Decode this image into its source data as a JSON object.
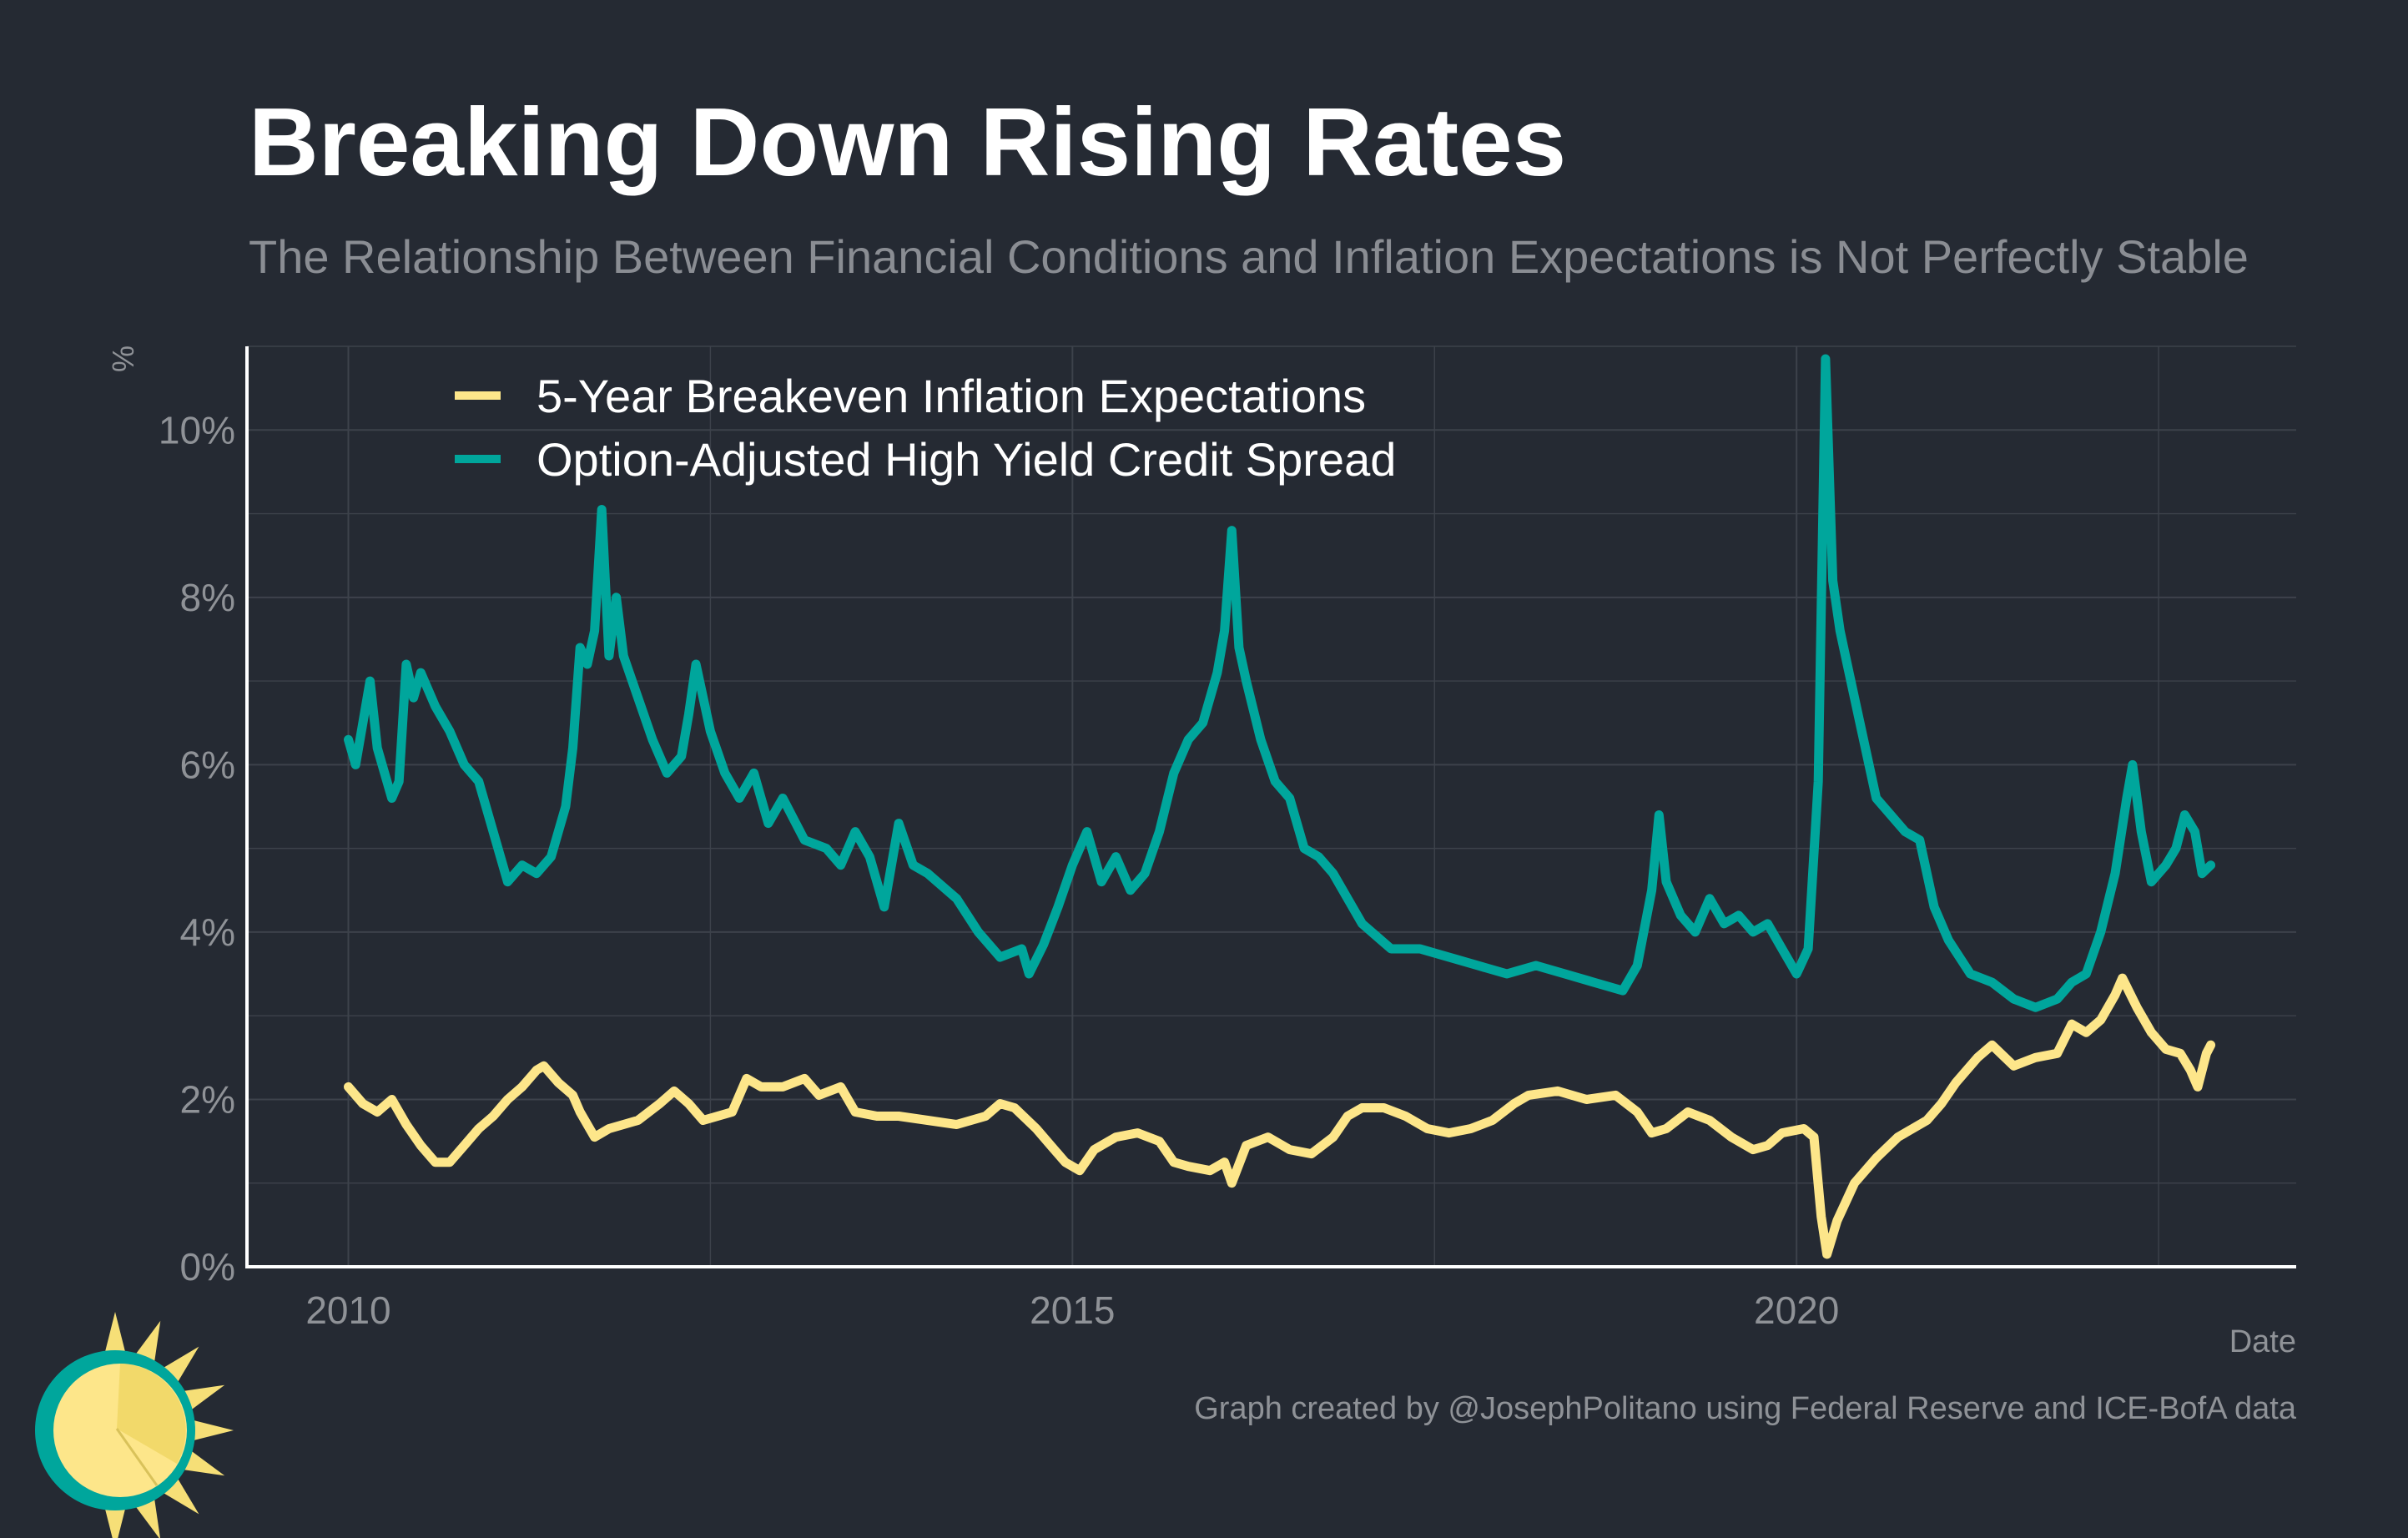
{
  "header": {
    "title": "Breaking Down Rising Rates",
    "subtitle": "The Relationship Between Financial Conditions and Inflation Expectations is Not Perfectly Stable"
  },
  "footer": {
    "credit": "Graph created by @JosephPolitano using Federal Reserve and ICE-BofA data"
  },
  "colors": {
    "background": "#252a33",
    "grid": "#3d424b",
    "axis": "#ffffff",
    "breakeven": "#fde68a",
    "spread": "#00a69c",
    "logo_sun": "#f6df77",
    "logo_ring": "#00a69c"
  },
  "logo": {
    "icon": "sun-logo-icon"
  },
  "chart_data": {
    "type": "line",
    "xlabel": "Date",
    "ylabel": "%",
    "x_ticks": [
      "2010",
      "2015",
      "2020"
    ],
    "y_ticks": [
      "0%",
      "2%",
      "4%",
      "6%",
      "8%",
      "10%"
    ],
    "ylim": [
      0,
      11
    ],
    "xlim": [
      2009.3,
      2023.45
    ],
    "grid": true,
    "legend_position": "top-left",
    "series": [
      {
        "name": "5-Year Breakeven Inflation Expectations",
        "color": "#fde68a",
        "points": [
          [
            2010.0,
            2.15
          ],
          [
            2010.1,
            1.95
          ],
          [
            2010.2,
            1.85
          ],
          [
            2010.3,
            2.0
          ],
          [
            2010.4,
            1.7
          ],
          [
            2010.5,
            1.45
          ],
          [
            2010.6,
            1.25
          ],
          [
            2010.7,
            1.25
          ],
          [
            2010.8,
            1.45
          ],
          [
            2010.9,
            1.65
          ],
          [
            2011.0,
            1.8
          ],
          [
            2011.1,
            2.0
          ],
          [
            2011.2,
            2.15
          ],
          [
            2011.3,
            2.35
          ],
          [
            2011.35,
            2.4
          ],
          [
            2011.45,
            2.2
          ],
          [
            2011.55,
            2.05
          ],
          [
            2011.6,
            1.85
          ],
          [
            2011.7,
            1.55
          ],
          [
            2011.8,
            1.65
          ],
          [
            2011.9,
            1.7
          ],
          [
            2012.0,
            1.75
          ],
          [
            2012.15,
            1.95
          ],
          [
            2012.25,
            2.1
          ],
          [
            2012.35,
            1.95
          ],
          [
            2012.45,
            1.75
          ],
          [
            2012.55,
            1.8
          ],
          [
            2012.65,
            1.85
          ],
          [
            2012.75,
            2.25
          ],
          [
            2012.85,
            2.15
          ],
          [
            2013.0,
            2.15
          ],
          [
            2013.15,
            2.25
          ],
          [
            2013.25,
            2.05
          ],
          [
            2013.4,
            2.15
          ],
          [
            2013.5,
            1.85
          ],
          [
            2013.65,
            1.8
          ],
          [
            2013.8,
            1.8
          ],
          [
            2014.0,
            1.75
          ],
          [
            2014.2,
            1.7
          ],
          [
            2014.4,
            1.8
          ],
          [
            2014.5,
            1.95
          ],
          [
            2014.6,
            1.9
          ],
          [
            2014.75,
            1.65
          ],
          [
            2014.85,
            1.45
          ],
          [
            2014.95,
            1.25
          ],
          [
            2015.05,
            1.15
          ],
          [
            2015.15,
            1.4
          ],
          [
            2015.3,
            1.55
          ],
          [
            2015.45,
            1.6
          ],
          [
            2015.6,
            1.5
          ],
          [
            2015.7,
            1.25
          ],
          [
            2015.8,
            1.2
          ],
          [
            2015.95,
            1.15
          ],
          [
            2016.05,
            1.25
          ],
          [
            2016.1,
            1.0
          ],
          [
            2016.2,
            1.45
          ],
          [
            2016.35,
            1.55
          ],
          [
            2016.5,
            1.4
          ],
          [
            2016.65,
            1.35
          ],
          [
            2016.8,
            1.55
          ],
          [
            2016.9,
            1.8
          ],
          [
            2017.0,
            1.9
          ],
          [
            2017.15,
            1.9
          ],
          [
            2017.3,
            1.8
          ],
          [
            2017.45,
            1.65
          ],
          [
            2017.6,
            1.6
          ],
          [
            2017.75,
            1.65
          ],
          [
            2017.9,
            1.75
          ],
          [
            2018.05,
            1.95
          ],
          [
            2018.15,
            2.05
          ],
          [
            2018.35,
            2.1
          ],
          [
            2018.55,
            2.0
          ],
          [
            2018.75,
            2.05
          ],
          [
            2018.9,
            1.85
          ],
          [
            2019.0,
            1.6
          ],
          [
            2019.1,
            1.65
          ],
          [
            2019.25,
            1.85
          ],
          [
            2019.4,
            1.75
          ],
          [
            2019.55,
            1.55
          ],
          [
            2019.7,
            1.4
          ],
          [
            2019.8,
            1.45
          ],
          [
            2019.9,
            1.6
          ],
          [
            2020.05,
            1.65
          ],
          [
            2020.12,
            1.55
          ],
          [
            2020.17,
            0.6
          ],
          [
            2020.21,
            0.15
          ],
          [
            2020.28,
            0.55
          ],
          [
            2020.4,
            1.0
          ],
          [
            2020.55,
            1.3
          ],
          [
            2020.7,
            1.55
          ],
          [
            2020.9,
            1.75
          ],
          [
            2021.0,
            1.95
          ],
          [
            2021.1,
            2.2
          ],
          [
            2021.25,
            2.5
          ],
          [
            2021.35,
            2.65
          ],
          [
            2021.5,
            2.4
          ],
          [
            2021.65,
            2.5
          ],
          [
            2021.8,
            2.55
          ],
          [
            2021.9,
            2.9
          ],
          [
            2022.0,
            2.8
          ],
          [
            2022.1,
            2.95
          ],
          [
            2022.2,
            3.25
          ],
          [
            2022.25,
            3.45
          ],
          [
            2022.35,
            3.1
          ],
          [
            2022.45,
            2.8
          ],
          [
            2022.55,
            2.6
          ],
          [
            2022.65,
            2.55
          ],
          [
            2022.72,
            2.35
          ],
          [
            2022.77,
            2.15
          ],
          [
            2022.83,
            2.55
          ],
          [
            2022.86,
            2.65
          ]
        ]
      },
      {
        "name": "Option-Adjusted High Yield Credit Spread",
        "color": "#00a69c",
        "points": [
          [
            2010.0,
            6.3
          ],
          [
            2010.05,
            6.0
          ],
          [
            2010.1,
            6.5
          ],
          [
            2010.15,
            7.0
          ],
          [
            2010.2,
            6.2
          ],
          [
            2010.3,
            5.6
          ],
          [
            2010.35,
            5.8
          ],
          [
            2010.4,
            7.2
          ],
          [
            2010.45,
            6.8
          ],
          [
            2010.5,
            7.1
          ],
          [
            2010.6,
            6.7
          ],
          [
            2010.7,
            6.4
          ],
          [
            2010.8,
            6.0
          ],
          [
            2010.9,
            5.8
          ],
          [
            2011.0,
            5.2
          ],
          [
            2011.1,
            4.6
          ],
          [
            2011.2,
            4.8
          ],
          [
            2011.3,
            4.7
          ],
          [
            2011.4,
            4.9
          ],
          [
            2011.5,
            5.5
          ],
          [
            2011.55,
            6.2
          ],
          [
            2011.6,
            7.4
          ],
          [
            2011.65,
            7.2
          ],
          [
            2011.7,
            7.6
          ],
          [
            2011.75,
            9.05
          ],
          [
            2011.8,
            7.3
          ],
          [
            2011.85,
            8.0
          ],
          [
            2011.9,
            7.3
          ],
          [
            2012.0,
            6.8
          ],
          [
            2012.1,
            6.3
          ],
          [
            2012.2,
            5.9
          ],
          [
            2012.3,
            6.1
          ],
          [
            2012.35,
            6.6
          ],
          [
            2012.4,
            7.2
          ],
          [
            2012.5,
            6.4
          ],
          [
            2012.6,
            5.9
          ],
          [
            2012.7,
            5.6
          ],
          [
            2012.8,
            5.9
          ],
          [
            2012.9,
            5.3
          ],
          [
            2013.0,
            5.6
          ],
          [
            2013.15,
            5.1
          ],
          [
            2013.3,
            5.0
          ],
          [
            2013.4,
            4.8
          ],
          [
            2013.5,
            5.2
          ],
          [
            2013.6,
            4.9
          ],
          [
            2013.7,
            4.3
          ],
          [
            2013.8,
            5.3
          ],
          [
            2013.9,
            4.8
          ],
          [
            2014.0,
            4.7
          ],
          [
            2014.2,
            4.4
          ],
          [
            2014.35,
            4.0
          ],
          [
            2014.5,
            3.7
          ],
          [
            2014.65,
            3.8
          ],
          [
            2014.7,
            3.5
          ],
          [
            2014.8,
            3.85
          ],
          [
            2014.9,
            4.3
          ],
          [
            2015.0,
            4.8
          ],
          [
            2015.1,
            5.2
          ],
          [
            2015.2,
            4.6
          ],
          [
            2015.3,
            4.9
          ],
          [
            2015.4,
            4.5
          ],
          [
            2015.5,
            4.7
          ],
          [
            2015.6,
            5.2
          ],
          [
            2015.7,
            5.9
          ],
          [
            2015.8,
            6.3
          ],
          [
            2015.9,
            6.5
          ],
          [
            2016.0,
            7.1
          ],
          [
            2016.05,
            7.6
          ],
          [
            2016.1,
            8.8
          ],
          [
            2016.15,
            7.4
          ],
          [
            2016.2,
            7.0
          ],
          [
            2016.3,
            6.3
          ],
          [
            2016.4,
            5.8
          ],
          [
            2016.5,
            5.6
          ],
          [
            2016.6,
            5.0
          ],
          [
            2016.7,
            4.9
          ],
          [
            2016.8,
            4.7
          ],
          [
            2016.9,
            4.4
          ],
          [
            2017.0,
            4.1
          ],
          [
            2017.2,
            3.8
          ],
          [
            2017.4,
            3.8
          ],
          [
            2017.6,
            3.7
          ],
          [
            2017.8,
            3.6
          ],
          [
            2018.0,
            3.5
          ],
          [
            2018.2,
            3.6
          ],
          [
            2018.4,
            3.5
          ],
          [
            2018.6,
            3.4
          ],
          [
            2018.8,
            3.3
          ],
          [
            2018.9,
            3.6
          ],
          [
            2019.0,
            4.5
          ],
          [
            2019.05,
            5.4
          ],
          [
            2019.1,
            4.6
          ],
          [
            2019.2,
            4.2
          ],
          [
            2019.3,
            4.0
          ],
          [
            2019.4,
            4.4
          ],
          [
            2019.5,
            4.1
          ],
          [
            2019.6,
            4.2
          ],
          [
            2019.7,
            4.0
          ],
          [
            2019.8,
            4.1
          ],
          [
            2019.9,
            3.8
          ],
          [
            2020.0,
            3.5
          ],
          [
            2020.08,
            3.8
          ],
          [
            2020.15,
            5.8
          ],
          [
            2020.2,
            10.85
          ],
          [
            2020.25,
            8.2
          ],
          [
            2020.3,
            7.6
          ],
          [
            2020.35,
            7.2
          ],
          [
            2020.45,
            6.4
          ],
          [
            2020.55,
            5.6
          ],
          [
            2020.65,
            5.4
          ],
          [
            2020.75,
            5.2
          ],
          [
            2020.85,
            5.1
          ],
          [
            2020.95,
            4.3
          ],
          [
            2021.05,
            3.9
          ],
          [
            2021.2,
            3.5
          ],
          [
            2021.35,
            3.4
          ],
          [
            2021.5,
            3.2
          ],
          [
            2021.65,
            3.1
          ],
          [
            2021.8,
            3.2
          ],
          [
            2021.9,
            3.4
          ],
          [
            2022.0,
            3.5
          ],
          [
            2022.1,
            4.0
          ],
          [
            2022.2,
            4.7
          ],
          [
            2022.28,
            5.6
          ],
          [
            2022.32,
            6.0
          ],
          [
            2022.38,
            5.2
          ],
          [
            2022.45,
            4.6
          ],
          [
            2022.55,
            4.8
          ],
          [
            2022.62,
            5.0
          ],
          [
            2022.68,
            5.4
          ],
          [
            2022.75,
            5.2
          ],
          [
            2022.8,
            4.7
          ],
          [
            2022.86,
            4.8
          ]
        ]
      }
    ]
  }
}
